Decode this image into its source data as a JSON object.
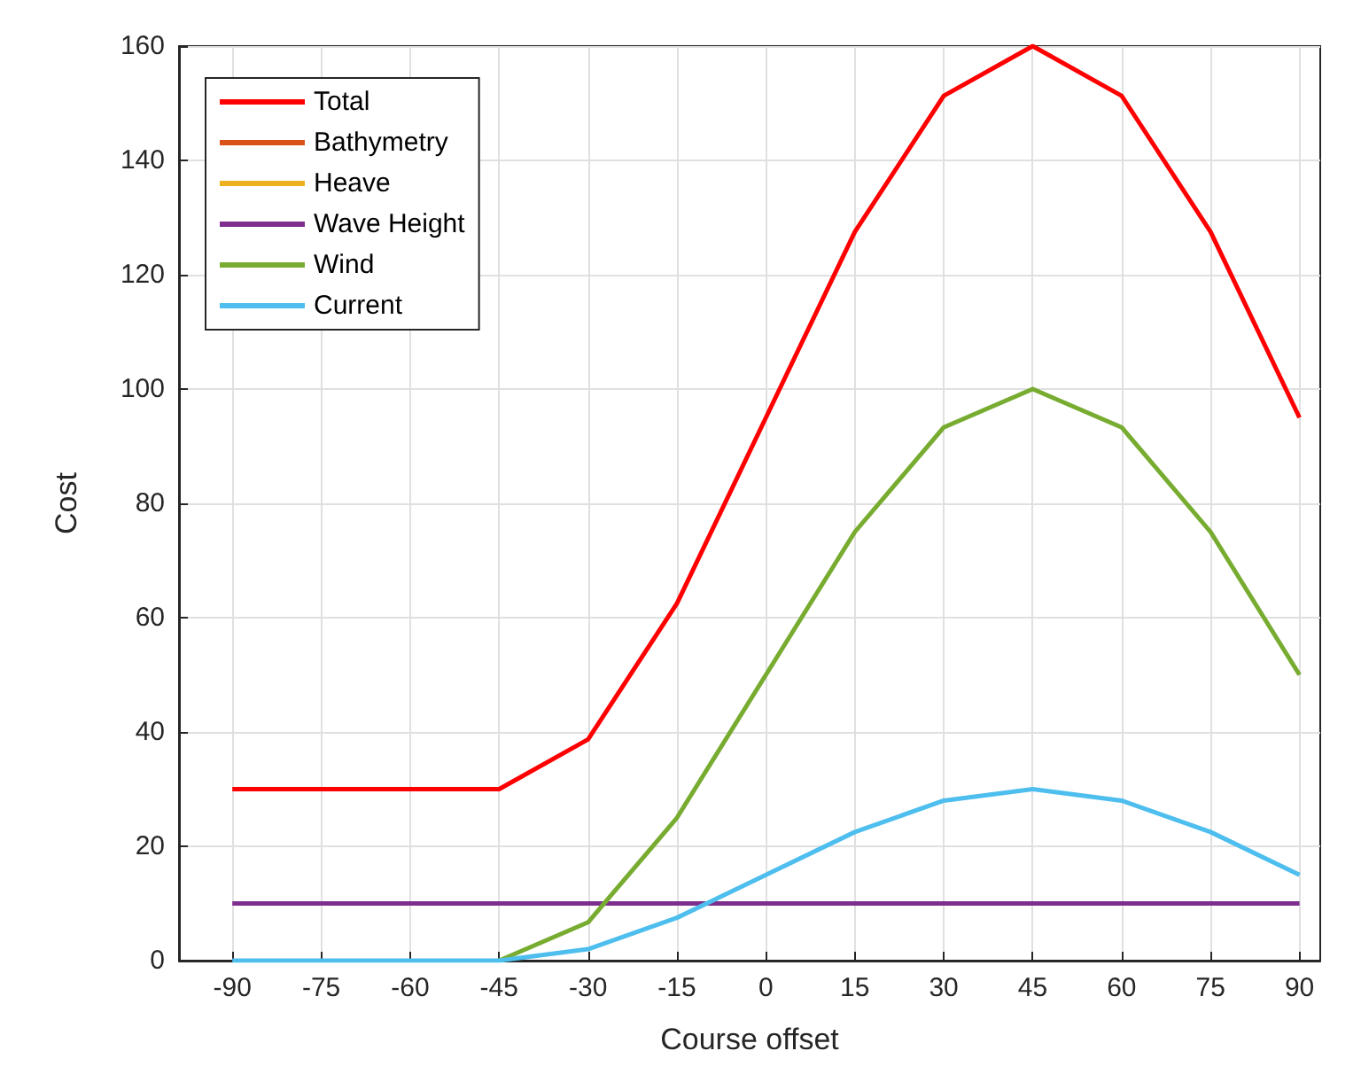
{
  "chart_data": {
    "type": "line",
    "xlabel": "Course offset",
    "ylabel": "Cost",
    "x": [
      -90,
      -75,
      -60,
      -45,
      -30,
      -15,
      0,
      15,
      30,
      45,
      60,
      75,
      90
    ],
    "series": [
      {
        "name": "Total",
        "color": "#ff0000",
        "values": [
          30,
          30,
          30,
          30,
          38.7,
          62.5,
          95,
          127.5,
          151.3,
          160,
          151.3,
          127.5,
          95
        ]
      },
      {
        "name": "Bathymetry",
        "color": "#d95319",
        "values": [
          null,
          null,
          null,
          null,
          null,
          null,
          null,
          null,
          null,
          null,
          null,
          null,
          null
        ]
      },
      {
        "name": "Heave",
        "color": "#edb120",
        "values": [
          null,
          null,
          null,
          null,
          null,
          null,
          null,
          null,
          null,
          null,
          null,
          null,
          null
        ]
      },
      {
        "name": "Wave Height",
        "color": "#7e2f8e",
        "values": [
          10,
          10,
          10,
          10,
          10,
          10,
          10,
          10,
          10,
          10,
          10,
          10,
          10
        ]
      },
      {
        "name": "Wind",
        "color": "#77ac30",
        "values": [
          null,
          null,
          null,
          0,
          6.7,
          25,
          50,
          75,
          93.3,
          100,
          93.3,
          75,
          50
        ]
      },
      {
        "name": "Current",
        "color": "#4dbeee",
        "values": [
          0,
          0,
          0,
          0,
          2,
          7.5,
          15,
          22.5,
          28,
          30,
          28,
          22.5,
          15
        ]
      }
    ],
    "xlim": [
      -99,
      93.5
    ],
    "xticks": [
      -90,
      -75,
      -60,
      -45,
      -30,
      -15,
      0,
      15,
      30,
      45,
      60,
      75,
      90
    ],
    "ylim": [
      0,
      160
    ],
    "yticks": [
      0,
      20,
      40,
      60,
      80,
      100,
      120,
      140,
      160
    ],
    "grid": true,
    "legend": "top left",
    "marker": "none",
    "line_style": "solid"
  }
}
